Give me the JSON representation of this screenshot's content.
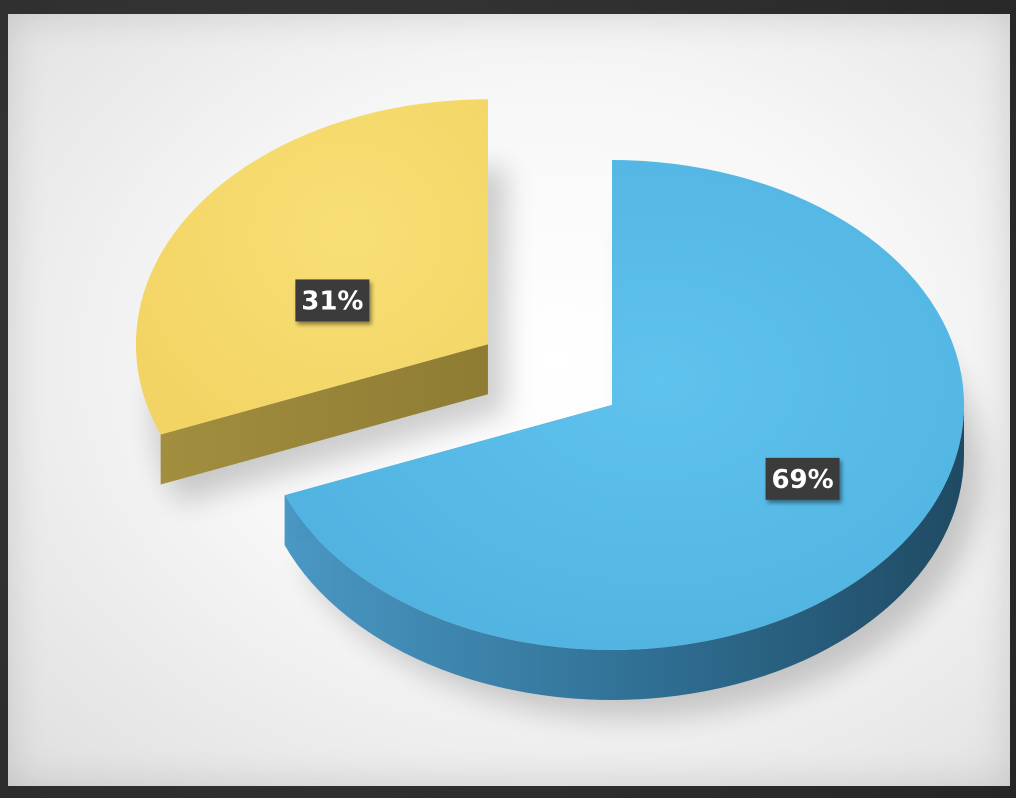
{
  "chart_data": {
    "type": "pie",
    "title": "",
    "categories": [
      "",
      ""
    ],
    "values": [
      31,
      69
    ],
    "colors": [
      "#f4d96b",
      "#59bce8"
    ],
    "data_labels": [
      "31%",
      "69%"
    ],
    "style": "3d-exploded",
    "legend": "none"
  }
}
